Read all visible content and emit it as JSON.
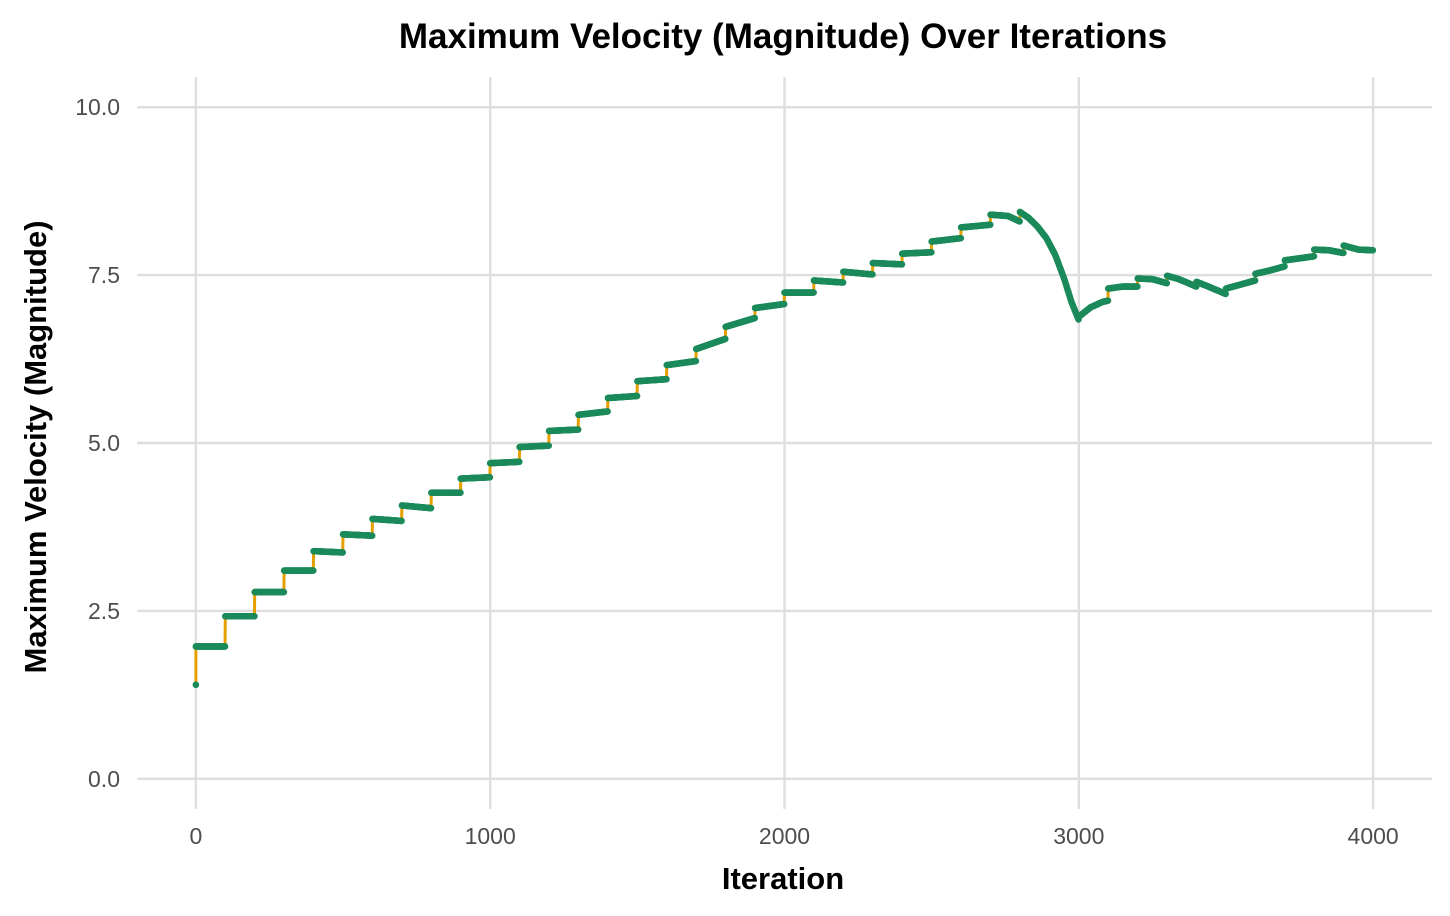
{
  "chart_data": {
    "type": "line",
    "title": "Maximum Velocity (Magnitude) Over Iterations",
    "xlabel": "Iteration",
    "ylabel": "Maximum Velocity (Magnitude)",
    "xlim": [
      -200,
      4200
    ],
    "ylim": [
      -0.45,
      10.45
    ],
    "x_ticks": [
      0,
      1000,
      2000,
      3000,
      4000
    ],
    "x_tick_labels": [
      "0",
      "1000",
      "2000",
      "3000",
      "4000"
    ],
    "y_ticks": [
      0,
      2.5,
      5,
      7.5,
      10
    ],
    "y_tick_labels": [
      "0.0",
      "2.5",
      "5.0",
      "7.5",
      "10.0"
    ],
    "grid": true,
    "legend": "none",
    "colors": {
      "line": "#E69F00",
      "points": "#1B8A5A",
      "grid": "#DEDEDE"
    },
    "series": [
      {
        "points": [
          [
            0,
            1.4
          ],
          [
            0,
            1.97
          ],
          [
            99,
            1.97
          ],
          [
            100,
            2.42
          ],
          [
            199,
            2.42
          ],
          [
            200,
            2.78
          ],
          [
            299,
            2.78
          ],
          [
            300,
            3.1
          ],
          [
            399,
            3.1
          ],
          [
            400,
            3.39
          ],
          [
            499,
            3.37
          ],
          [
            500,
            3.64
          ],
          [
            599,
            3.62
          ],
          [
            600,
            3.87
          ],
          [
            699,
            3.84
          ],
          [
            700,
            4.07
          ],
          [
            799,
            4.03
          ],
          [
            800,
            4.26
          ],
          [
            899,
            4.26
          ],
          [
            900,
            4.47
          ],
          [
            999,
            4.49
          ],
          [
            1000,
            4.7
          ],
          [
            1099,
            4.72
          ],
          [
            1100,
            4.94
          ],
          [
            1199,
            4.96
          ],
          [
            1200,
            5.18
          ],
          [
            1299,
            5.2
          ],
          [
            1300,
            5.42
          ],
          [
            1399,
            5.47
          ],
          [
            1400,
            5.67
          ],
          [
            1499,
            5.7
          ],
          [
            1500,
            5.92
          ],
          [
            1599,
            5.95
          ],
          [
            1600,
            6.16
          ],
          [
            1699,
            6.22
          ],
          [
            1700,
            6.4
          ],
          [
            1799,
            6.55
          ],
          [
            1800,
            6.73
          ],
          [
            1899,
            6.86
          ],
          [
            1900,
            7.01
          ],
          [
            1999,
            7.07
          ],
          [
            2000,
            7.24
          ],
          [
            2099,
            7.24
          ],
          [
            2100,
            7.42
          ],
          [
            2199,
            7.39
          ],
          [
            2200,
            7.55
          ],
          [
            2299,
            7.51
          ],
          [
            2300,
            7.68
          ],
          [
            2399,
            7.66
          ],
          [
            2400,
            7.82
          ],
          [
            2499,
            7.84
          ],
          [
            2500,
            8.0
          ],
          [
            2599,
            8.05
          ],
          [
            2600,
            8.21
          ],
          [
            2699,
            8.25
          ],
          [
            2700,
            8.4
          ],
          [
            2760,
            8.38
          ],
          [
            2799,
            8.3
          ],
          [
            2800,
            8.44
          ],
          [
            2830,
            8.35
          ],
          [
            2860,
            8.22
          ],
          [
            2890,
            8.05
          ],
          [
            2920,
            7.8
          ],
          [
            2950,
            7.45
          ],
          [
            2975,
            7.1
          ],
          [
            2999,
            6.84
          ],
          [
            3000,
            6.88
          ],
          [
            3040,
            7.02
          ],
          [
            3080,
            7.1
          ],
          [
            3099,
            7.12
          ],
          [
            3100,
            7.3
          ],
          [
            3150,
            7.33
          ],
          [
            3199,
            7.33
          ],
          [
            3200,
            7.45
          ],
          [
            3250,
            7.44
          ],
          [
            3299,
            7.38
          ],
          [
            3300,
            7.49
          ],
          [
            3340,
            7.44
          ],
          [
            3399,
            7.33
          ],
          [
            3400,
            7.4
          ],
          [
            3440,
            7.33
          ],
          [
            3499,
            7.22
          ],
          [
            3500,
            7.3
          ],
          [
            3550,
            7.36
          ],
          [
            3599,
            7.42
          ],
          [
            3600,
            7.52
          ],
          [
            3650,
            7.57
          ],
          [
            3699,
            7.63
          ],
          [
            3700,
            7.72
          ],
          [
            3750,
            7.75
          ],
          [
            3799,
            7.78
          ],
          [
            3800,
            7.88
          ],
          [
            3850,
            7.87
          ],
          [
            3899,
            7.83
          ],
          [
            3900,
            7.94
          ],
          [
            3950,
            7.88
          ],
          [
            3999,
            7.87
          ]
        ]
      }
    ]
  }
}
